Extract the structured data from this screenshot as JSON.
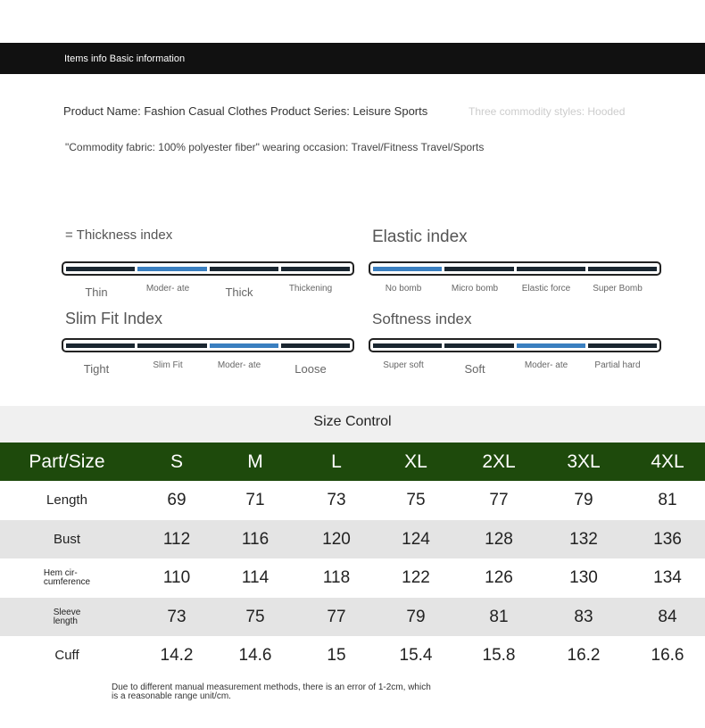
{
  "header": {
    "title": "Items info Basic information"
  },
  "product": {
    "line1": "Product Name: Fashion Casual Clothes Product Series: Leisure Sports",
    "styles": "Three commodity styles: Hooded",
    "line2": "\"Commodity fabric: 100% polyester fiber\" wearing occasion: Travel/Fitness Travel/Sports"
  },
  "indexes": [
    {
      "title": "= Thickness index",
      "options": [
        "Thin",
        "Moder-\nate",
        "Thick",
        "Thickening"
      ],
      "selected": 1
    },
    {
      "title": "Elastic index",
      "options": [
        "No\nbomb",
        "Micro\nbomb",
        "Elastic\nforce",
        "Super\nBomb"
      ],
      "selected": 0
    },
    {
      "title": "Slim Fit Index",
      "options": [
        "Tight",
        "Slim Fit",
        "Moder-\nate",
        "Loose"
      ],
      "selected": 2
    },
    {
      "title": "Softness index",
      "options": [
        "Super soft",
        "Soft",
        "Moder-\nate",
        "Partial\nhard"
      ],
      "selected": 2
    }
  ],
  "table": {
    "title": "Size Control",
    "header": [
      "Part/Size",
      "S",
      "M",
      "L",
      "XL",
      "2XL",
      "3XL",
      "4XL"
    ],
    "rows": [
      [
        "Length",
        69,
        71,
        73,
        75,
        77,
        79,
        81
      ],
      [
        "Bust",
        112,
        116,
        120,
        124,
        128,
        132,
        136
      ],
      [
        "Hem cir-\ncumference",
        110,
        114,
        118,
        122,
        126,
        130,
        134
      ],
      [
        "Sleeve\nlength",
        73,
        75,
        77,
        79,
        81,
        83,
        84
      ],
      [
        "Cuff",
        14.2,
        14.6,
        15,
        15.4,
        15.8,
        16.2,
        16.6
      ]
    ]
  },
  "footnote": "Due to different manual measurement methods, there is an error of 1-2cm, which\nis a reasonable range unit/cm."
}
